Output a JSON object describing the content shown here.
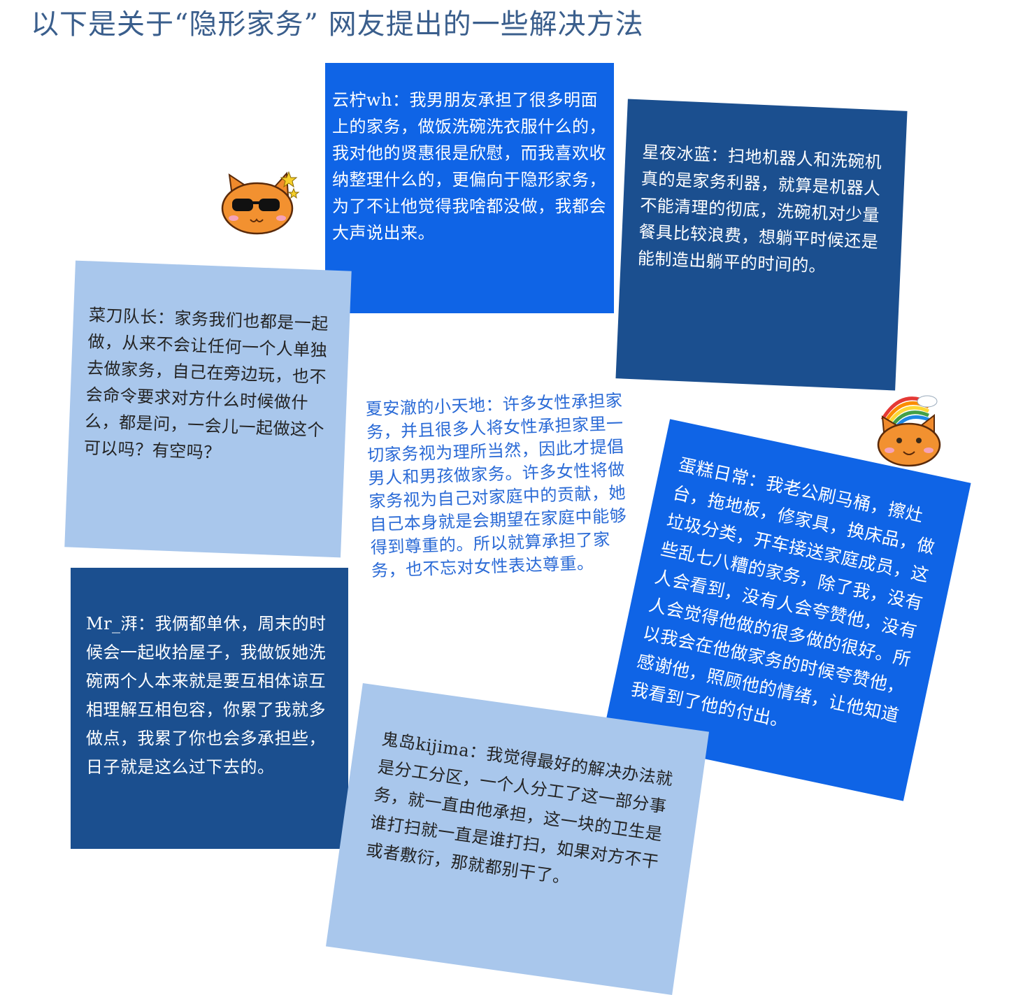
{
  "page": {
    "title": "以下是关于“隐形家务” 网友提出的一些解决方法"
  },
  "notes": {
    "yunning": {
      "text": "云柠wh：我男朋友承担了很多明面上的家务，做饭洗碗洗衣服什么的，我对他的贤惠很是欣慰，而我喜欢收纳整理什么的，更偏向于隐形家务，为了不让他觉得我啥都没做，我都会大声说出来。",
      "color": "#0f64e6"
    },
    "xingye": {
      "text": "星夜冰蓝：扫地机器人和洗碗机真的是家务利器，就算是机器人不能清理的彻底，洗碗机对少量餐具比较浪费，想躺平时候还是能制造出躺平的时间的。",
      "color": "#1b4f8f"
    },
    "caidao": {
      "text": "菜刀队长：家务我们也都是一起做，从来不会让任何一个人单独去做家务，自己在旁边玩，也不会命令要求对方什么时候做什么，都是问，一会儿一起做这个可以吗？有空吗？",
      "color": "#a9c7ec"
    },
    "xiaan": {
      "text": "夏安澈的小天地：许多女性承担家务，并且很多人将女性承担家里一切家务视为理所当然，因此才提倡男人和男孩做家务。许多女性将做家务视为自己对家庭中的贡献，她自己本身就是会期望在家庭中能够得到尊重的。所以就算承担了家务，也不忘对女性表达尊重。",
      "color": "#2a6ad6"
    },
    "mr": {
      "text": "Mr_湃：我俩都单休，周末的时候会一起收拾屋子，我做饭她洗碗两个人本来就是要互相体谅互相理解互相包容，你累了我就多做点，我累了你也会多承担些，日子就是这么过下去的。",
      "color": "#1b4f8f"
    },
    "dangao": {
      "text": "蛋糕日常：我老公刷马桶，擦灶台，拖地板，修家具，换床品，做垃圾分类，开车接送家庭成员，这些乱七八糟的家务，除了我，没有人会看到，没有人会夸赞他，没有人会觉得他做的很多做的很好。所以我会在他做家务的时候夸赞他，感谢他，照顾他的情绪，让他知道我看到了他的付出。",
      "color": "#0f64e6"
    },
    "guidao": {
      "text": "鬼岛kijima：我觉得最好的解决办法就是分工分区，一个人分工了这一部分事务，就一直由他承担，这一块的卫生是谁打扫就一直是谁打扫，如果对方不干或者敷衍，那就都别干了。",
      "color": "#a9c7ec"
    }
  },
  "stickers": {
    "cat_sunglasses": "cat-with-sunglasses-icon",
    "cat_rainbow": "cat-with-rainbow-icon"
  }
}
